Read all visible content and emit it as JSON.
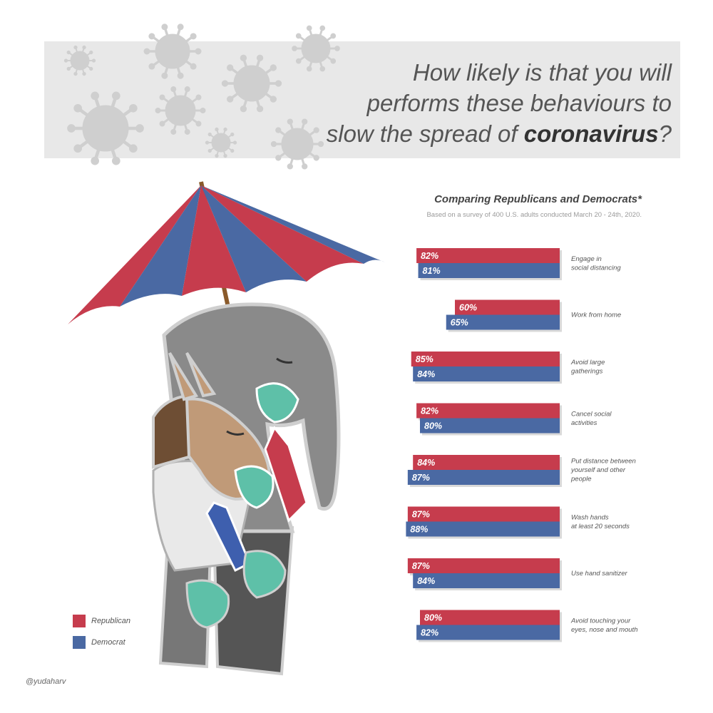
{
  "title": {
    "line1": "How likely is that you will",
    "line2": "performs these behaviours to",
    "line3_pre": "slow the spread of ",
    "line3_bold": "coronavirus",
    "line3_post": "?"
  },
  "subtitle": "Comparing Republicans and Democrats*",
  "note": "Based on a survey of 400 U.S. adults conducted March 20 - 24th, 2020.",
  "legend": {
    "republican": "Republican",
    "democrat": "Democrat"
  },
  "credit": "@yudaharv",
  "colors": {
    "republican": "#c63c4d",
    "democrat": "#4a69a3",
    "header_band": "#e8e8e8",
    "virus": "#cfcfcf"
  },
  "chart_data": {
    "type": "bar",
    "orientation": "horizontal",
    "value_unit": "%",
    "categories": [
      [
        "Engage in",
        "social distancing"
      ],
      [
        "Work from home"
      ],
      [
        "Avoid large",
        "gatherings"
      ],
      [
        "Cancel social",
        "activities"
      ],
      [
        "Put distance between",
        "yourself and other",
        "people"
      ],
      [
        "Wash hands",
        "at least 20 seconds"
      ],
      [
        "Use hand sanitizer"
      ],
      [
        "Avoid touching your",
        "eyes, nose and mouth"
      ]
    ],
    "series": [
      {
        "name": "Republican",
        "color": "#c63c4d",
        "values": [
          82,
          60,
          85,
          82,
          84,
          87,
          87,
          80
        ]
      },
      {
        "name": "Democrat",
        "color": "#4a69a3",
        "values": [
          81,
          65,
          84,
          80,
          87,
          88,
          84,
          82
        ]
      }
    ],
    "value_labels": [
      [
        "82%",
        "60%",
        "85%",
        "82%",
        "84%",
        "87%",
        "87%",
        "80%"
      ],
      [
        "81%",
        "65%",
        "84%",
        "80%",
        "87%",
        "88%",
        "84%",
        "82%"
      ]
    ],
    "legend_position": "bottom-left",
    "grid": false
  }
}
